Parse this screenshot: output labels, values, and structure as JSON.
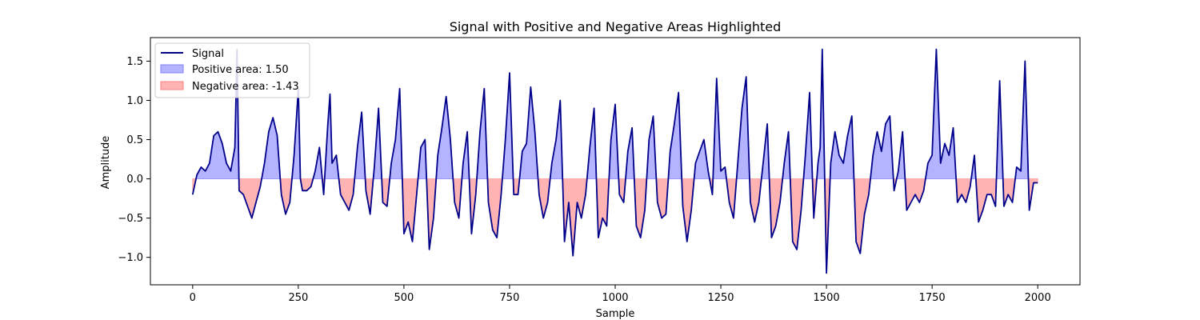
{
  "chart_data": {
    "type": "line",
    "title": "Signal with Positive and Negative Areas Highlighted",
    "xlabel": "Sample",
    "ylabel": "Amplitude",
    "xlim": [
      -100,
      2100
    ],
    "ylim": [
      -1.35,
      1.8
    ],
    "xticks": [
      0,
      250,
      500,
      750,
      1000,
      1250,
      1500,
      1750,
      2000
    ],
    "yticks": [
      -1.0,
      -0.5,
      0.0,
      0.5,
      1.0,
      1.5
    ],
    "grid": false,
    "legend_position": "top-left",
    "legend": {
      "signal": "Signal",
      "positive": "Positive area: 1.50",
      "negative": "Negative area: -1.43"
    },
    "colors": {
      "signal": "#00008b",
      "positive_fill": "#b3b3ff",
      "negative_fill": "#ffb3b3"
    },
    "series": [
      {
        "name": "Signal",
        "x": [
          0,
          10,
          20,
          30,
          40,
          50,
          60,
          70,
          80,
          90,
          100,
          105,
          110,
          120,
          130,
          140,
          150,
          160,
          170,
          180,
          190,
          200,
          210,
          220,
          230,
          240,
          250,
          255,
          260,
          270,
          280,
          290,
          300,
          310,
          320,
          325,
          330,
          340,
          350,
          360,
          370,
          380,
          390,
          400,
          410,
          420,
          430,
          440,
          450,
          460,
          470,
          480,
          490,
          500,
          510,
          520,
          530,
          540,
          550,
          560,
          570,
          580,
          590,
          600,
          610,
          620,
          630,
          640,
          650,
          660,
          670,
          680,
          690,
          700,
          710,
          720,
          730,
          740,
          750,
          760,
          770,
          780,
          790,
          800,
          810,
          820,
          830,
          840,
          850,
          860,
          870,
          880,
          890,
          900,
          910,
          920,
          930,
          940,
          950,
          960,
          970,
          980,
          990,
          1000,
          1010,
          1020,
          1030,
          1040,
          1050,
          1060,
          1070,
          1080,
          1090,
          1100,
          1110,
          1120,
          1130,
          1140,
          1150,
          1160,
          1170,
          1180,
          1190,
          1200,
          1210,
          1220,
          1230,
          1240,
          1250,
          1260,
          1270,
          1280,
          1290,
          1300,
          1310,
          1320,
          1330,
          1340,
          1350,
          1360,
          1370,
          1380,
          1390,
          1400,
          1410,
          1420,
          1430,
          1440,
          1450,
          1460,
          1470,
          1480,
          1485,
          1490,
          1500,
          1510,
          1520,
          1530,
          1540,
          1550,
          1560,
          1570,
          1580,
          1590,
          1600,
          1610,
          1620,
          1630,
          1640,
          1650,
          1660,
          1670,
          1680,
          1690,
          1700,
          1710,
          1720,
          1730,
          1740,
          1750,
          1760,
          1770,
          1780,
          1790,
          1800,
          1810,
          1820,
          1830,
          1840,
          1850,
          1860,
          1870,
          1880,
          1890,
          1900,
          1910,
          1920,
          1930,
          1940,
          1950,
          1960,
          1970,
          1980,
          1990,
          2000
        ],
        "y": [
          -0.2,
          0.05,
          0.15,
          0.1,
          0.2,
          0.55,
          0.6,
          0.45,
          0.2,
          0.1,
          0.4,
          1.65,
          -0.15,
          -0.2,
          -0.35,
          -0.5,
          -0.3,
          -0.1,
          0.2,
          0.6,
          0.78,
          0.55,
          -0.2,
          -0.45,
          -0.3,
          0.3,
          1.15,
          0.0,
          -0.15,
          -0.15,
          -0.1,
          0.1,
          0.4,
          -0.2,
          0.7,
          1.08,
          0.2,
          0.3,
          -0.2,
          -0.3,
          -0.4,
          -0.2,
          0.4,
          0.85,
          -0.15,
          -0.45,
          0.15,
          0.9,
          -0.3,
          -0.35,
          0.2,
          0.5,
          1.15,
          -0.7,
          -0.55,
          -0.8,
          -0.2,
          0.4,
          0.5,
          -0.9,
          -0.5,
          0.3,
          0.65,
          1.05,
          0.5,
          -0.3,
          -0.5,
          0.2,
          0.6,
          -0.7,
          -0.2,
          0.6,
          1.15,
          -0.3,
          -0.65,
          -0.75,
          -0.2,
          0.5,
          1.35,
          -0.2,
          -0.2,
          0.35,
          0.45,
          1.17,
          0.6,
          -0.2,
          -0.5,
          -0.3,
          0.2,
          0.5,
          1.0,
          -0.8,
          -0.3,
          -0.98,
          -0.3,
          -0.5,
          -0.2,
          0.4,
          0.9,
          -0.75,
          -0.5,
          -0.6,
          0.5,
          0.95,
          -0.2,
          -0.3,
          0.35,
          0.65,
          -0.6,
          -0.75,
          -0.4,
          0.5,
          0.8,
          -0.3,
          -0.5,
          -0.45,
          0.35,
          0.7,
          1.1,
          -0.35,
          -0.8,
          -0.4,
          0.2,
          0.35,
          0.5,
          0.1,
          -0.2,
          1.28,
          0.1,
          0.15,
          -0.3,
          -0.5,
          0.2,
          0.9,
          1.3,
          -0.3,
          -0.55,
          -0.3,
          0.2,
          0.7,
          -0.75,
          -0.6,
          -0.3,
          0.2,
          0.6,
          -0.8,
          -0.9,
          -0.4,
          0.3,
          1.1,
          -0.5,
          0.2,
          0.4,
          1.65,
          -1.2,
          0.2,
          0.6,
          0.3,
          0.2,
          0.55,
          0.8,
          -0.8,
          -0.95,
          -0.45,
          -0.2,
          0.3,
          0.6,
          0.35,
          0.7,
          0.8,
          -0.15,
          0.1,
          0.6,
          -0.4,
          -0.3,
          -0.2,
          -0.3,
          -0.15,
          0.2,
          0.3,
          1.65,
          0.2,
          0.45,
          0.3,
          0.65,
          -0.3,
          -0.2,
          -0.3,
          -0.1,
          0.3,
          -0.55,
          -0.4,
          -0.2,
          -0.2,
          -0.35,
          1.25,
          -0.35,
          -0.2,
          -0.3,
          0.15,
          0.1,
          1.5,
          -0.4,
          -0.05,
          -0.05
        ]
      }
    ]
  }
}
